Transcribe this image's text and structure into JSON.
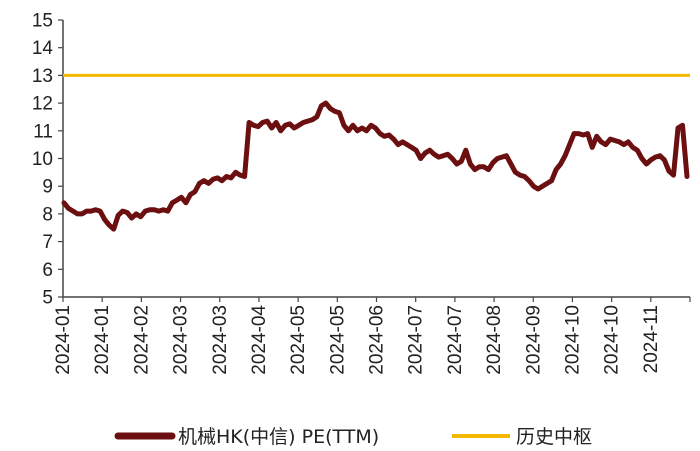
{
  "chart_data": {
    "type": "line",
    "ylim": [
      5,
      15
    ],
    "yticks": [
      "5",
      "6",
      "7",
      "8",
      "9",
      "10",
      "11",
      "12",
      "13",
      "14",
      "15"
    ],
    "x_tick_labels": [
      "2024-01",
      "2024-01",
      "2024-02",
      "2024-03",
      "2024-03",
      "2024-04",
      "2024-05",
      "2024-05",
      "2024-06",
      "2024-07",
      "2024-07",
      "2024-08",
      "2024-09",
      "2024-10",
      "2024-10",
      "2024-11"
    ],
    "legend_position": "bottom",
    "grid": false,
    "series": [
      {
        "name": "机械HK(中信) PE(TTM)",
        "color": "#6b0f10",
        "values": [
          8.4,
          8.2,
          8.1,
          8.0,
          8.0,
          8.1,
          8.1,
          8.15,
          8.1,
          7.8,
          7.6,
          7.45,
          7.95,
          8.1,
          8.05,
          7.85,
          8.0,
          7.9,
          8.1,
          8.15,
          8.15,
          8.1,
          8.15,
          8.1,
          8.4,
          8.5,
          8.6,
          8.4,
          8.7,
          8.8,
          9.1,
          9.2,
          9.1,
          9.25,
          9.3,
          9.2,
          9.35,
          9.3,
          9.5,
          9.4,
          9.35,
          11.3,
          11.2,
          11.15,
          11.3,
          11.35,
          11.1,
          11.3,
          11.0,
          11.2,
          11.25,
          11.1,
          11.2,
          11.3,
          11.35,
          11.4,
          11.5,
          11.9,
          12.0,
          11.8,
          11.7,
          11.65,
          11.2,
          11.0,
          11.2,
          11.0,
          11.1,
          11.0,
          11.2,
          11.1,
          10.9,
          10.8,
          10.85,
          10.7,
          10.5,
          10.6,
          10.5,
          10.4,
          10.3,
          10.0,
          10.2,
          10.3,
          10.15,
          10.05,
          10.1,
          10.15,
          10.0,
          9.8,
          9.9,
          10.3,
          9.8,
          9.6,
          9.7,
          9.7,
          9.6,
          9.85,
          10.0,
          10.05,
          10.1,
          9.8,
          9.5,
          9.4,
          9.35,
          9.2,
          9.0,
          8.9,
          9.0,
          9.1,
          9.2,
          9.6,
          9.8,
          10.1,
          10.5,
          10.9,
          10.9,
          10.85,
          10.9,
          10.4,
          10.8,
          10.6,
          10.5,
          10.7,
          10.65,
          10.6,
          10.5,
          10.6,
          10.4,
          10.3,
          10.0,
          9.8,
          9.95,
          10.05,
          10.1,
          9.95,
          9.55,
          9.4,
          11.1,
          11.2,
          9.35
        ]
      },
      {
        "name": "历史中枢",
        "color": "#f5b800",
        "constant": 13
      }
    ]
  }
}
